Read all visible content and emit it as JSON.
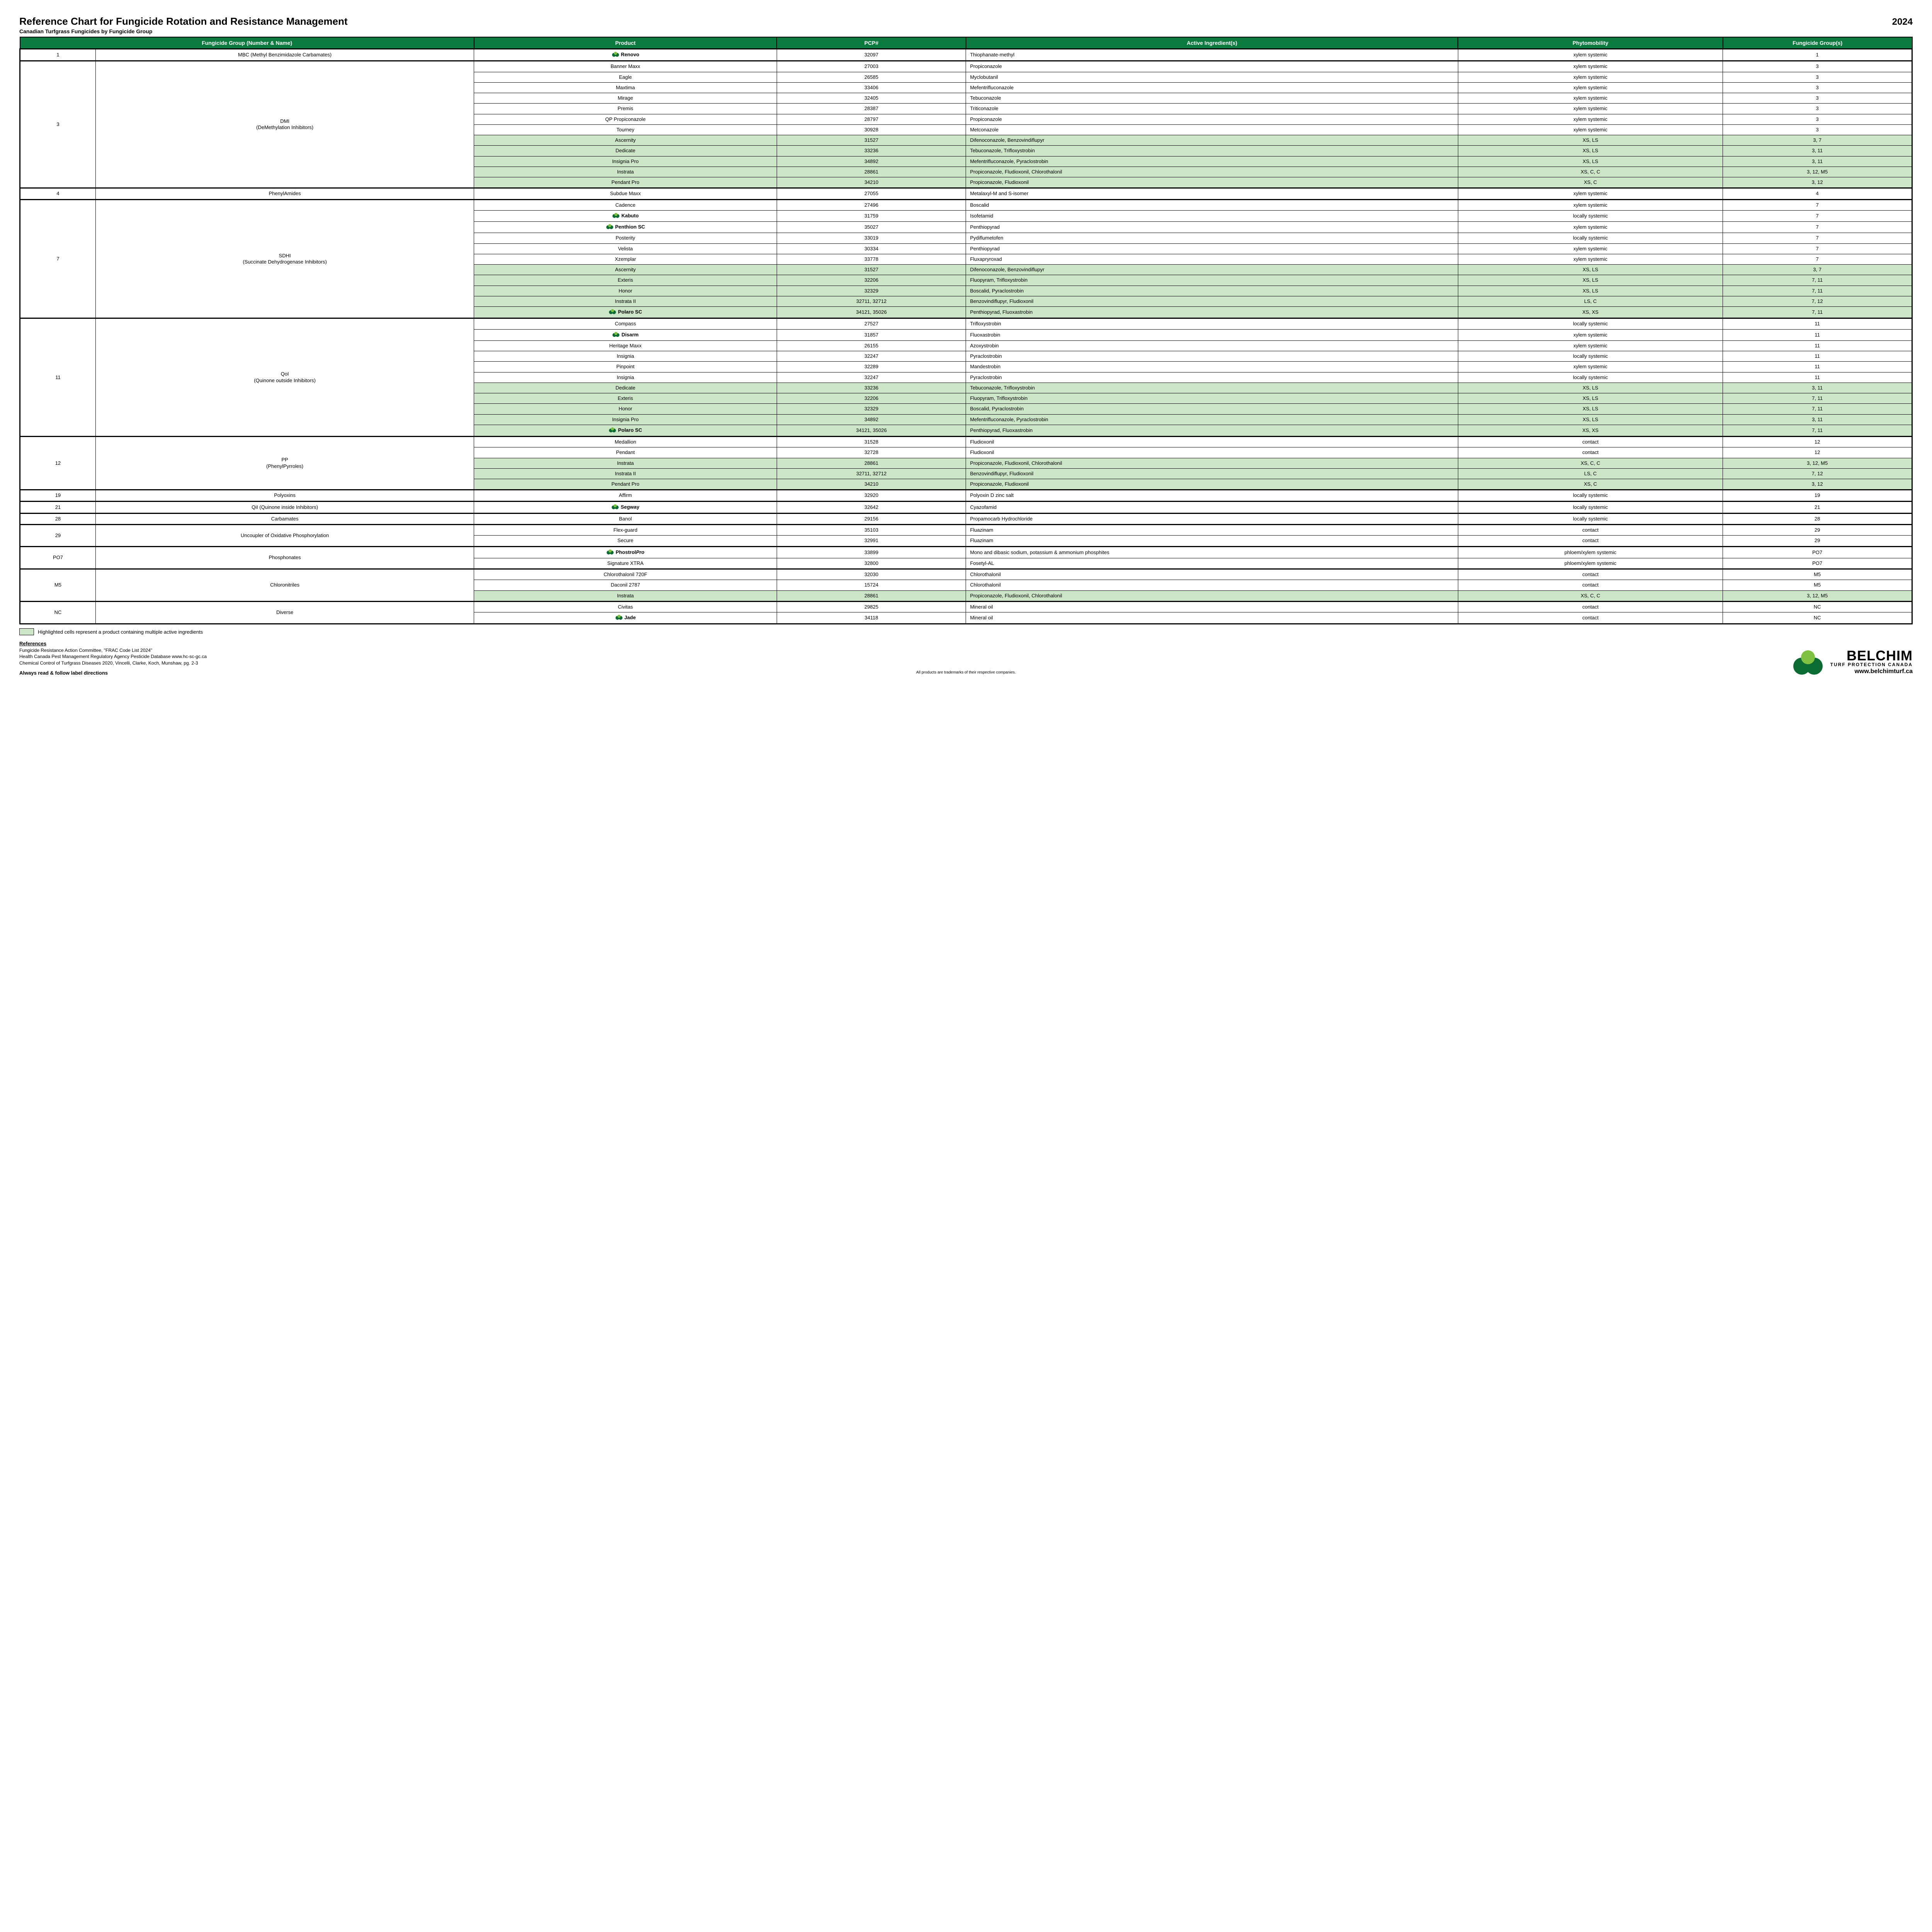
{
  "header": {
    "title": "Reference Chart for Fungicide Rotation and Resistance Management",
    "subtitle": "Canadian Turfgrass Fungicides by Fungicide Group",
    "year": "2024"
  },
  "columns": [
    "Fungicide Group (Number & Name)",
    "Product",
    "PCP#",
    "Active Ingredient(s)",
    "Phytomobility",
    "Fungicide Group(s)"
  ],
  "colors": {
    "header_bg": "#0b7a3e",
    "header_text": "#ffffff",
    "highlight_bg": "#cde6c8",
    "border": "#000000",
    "icon_dark": "#0b6b33",
    "icon_light": "#7fc243"
  },
  "groups": [
    {
      "num": "1",
      "name": "MBC  (Methyl Benzimidazole Carbamates)",
      "rows": [
        {
          "product": "Renovo",
          "logo": true,
          "bold": true,
          "pcp": "32097",
          "ai": "Thiophanate-methyl",
          "phy": "xylem systemic",
          "grp": "1"
        }
      ]
    },
    {
      "num": "3",
      "name": "DMI\n(DeMethylation Inhibitors)",
      "rows": [
        {
          "product": "Banner Maxx",
          "pcp": "27003",
          "ai": "Propiconazole",
          "phy": "xylem systemic",
          "grp": "3"
        },
        {
          "product": "Eagle",
          "pcp": "26585",
          "ai": "Myclobutanil",
          "phy": "xylem systemic",
          "grp": "3"
        },
        {
          "product": "Maxtima",
          "pcp": "33406",
          "ai": "Mefentrifluconazole",
          "phy": "xylem systemic",
          "grp": "3"
        },
        {
          "product": "Mirage",
          "pcp": "32405",
          "ai": "Tebuconazole",
          "phy": "xylem systemic",
          "grp": "3"
        },
        {
          "product": "Premis",
          "pcp": "28387",
          "ai": "Triticonazole",
          "phy": "xylem systemic",
          "grp": "3"
        },
        {
          "product": "QP Propiconazole",
          "pcp": "28797",
          "ai": "Propiconazole",
          "phy": "xylem systemic",
          "grp": "3"
        },
        {
          "product": "Tourney",
          "pcp": "30928",
          "ai": "Metconazole",
          "phy": "xylem systemic",
          "grp": "3"
        },
        {
          "product": "Ascernity",
          "pcp": "31527",
          "ai": "Difenoconazole, Benzovindiflupyr",
          "phy": "XS, LS",
          "grp": "3, 7",
          "hl": true
        },
        {
          "product": "Dedicate",
          "pcp": "33236",
          "ai": "Tebuconazole, Trifloxystrobin",
          "phy": "XS, LS",
          "grp": "3, 11",
          "hl": true
        },
        {
          "product": "Insignia Pro",
          "pcp": "34892",
          "ai": "Mefentrifluconazole, Pyraclostrobin",
          "phy": "XS, LS",
          "grp": "3, 11",
          "hl": true
        },
        {
          "product": "Instrata",
          "pcp": "28861",
          "ai": "Propiconazole, Fludioxonil, Chlorothalonil",
          "phy": "XS, C, C",
          "grp": "3, 12, M5",
          "hl": true
        },
        {
          "product": "Pendant Pro",
          "pcp": "34210",
          "ai": "Propiconazole, Fludioxonil",
          "phy": "XS, C",
          "grp": "3, 12",
          "hl": true
        }
      ]
    },
    {
      "num": "4",
      "name": "PhenylAmides",
      "rows": [
        {
          "product": "Subdue Maxx",
          "pcp": "27055",
          "ai": "Metalaxyl-M and S-isomer",
          "phy": "xylem systemic",
          "grp": "4"
        }
      ]
    },
    {
      "num": "7",
      "name": "SDHI\n(Succinate Dehydrogenase Inhibitors)",
      "rows": [
        {
          "product": "Cadence",
          "pcp": "27496",
          "ai": "Boscalid",
          "phy": "xylem systemic",
          "grp": "7"
        },
        {
          "product": "Kabuto",
          "logo": true,
          "bold": true,
          "pcp": "31759",
          "ai": "Isofetamid",
          "phy": "locally systemic",
          "grp": "7"
        },
        {
          "product": "Penthion SC",
          "logo": true,
          "bold": true,
          "pcp": "35027",
          "ai": "Penthiopyrad",
          "phy": "xylem systemic",
          "grp": "7"
        },
        {
          "product": "Posterity",
          "pcp": "33019",
          "ai": "Pydiflumetofen",
          "phy": "locally systemic",
          "grp": "7"
        },
        {
          "product": "Velista",
          "pcp": "30334",
          "ai": "Penthiopyrad",
          "phy": "xylem systemic",
          "grp": "7"
        },
        {
          "product": "Xzemplar",
          "pcp": "33778",
          "ai": "Fluxapryroxad",
          "phy": "xylem systemic",
          "grp": "7"
        },
        {
          "product": "Ascernity",
          "pcp": "31527",
          "ai": "Difenoconazole, Benzovindiflupyr",
          "phy": "XS, LS",
          "grp": "3, 7",
          "hl": true
        },
        {
          "product": "Exteris",
          "pcp": "32206",
          "ai": "Fluopyram, Trifloxystrobin",
          "phy": "XS, LS",
          "grp": "7, 11",
          "hl": true
        },
        {
          "product": "Honor",
          "pcp": "32329",
          "ai": "Boscalid, Pyraclostrobin",
          "phy": "XS, LS",
          "grp": "7, 11",
          "hl": true
        },
        {
          "product": "Instrata II",
          "pcp": "32711, 32712",
          "ai": "Benzovindiflupyr, Fludioxonil",
          "phy": "LS, C",
          "grp": "7, 12",
          "hl": true
        },
        {
          "product": "Polaro SC",
          "logo": true,
          "bold": true,
          "pcp": "34121, 35026",
          "ai": "Penthiopyrad, Fluoxastrobin",
          "phy": "XS, XS",
          "grp": "7, 11",
          "hl": true
        }
      ]
    },
    {
      "num": "11",
      "name": "QoI\n(Quinone outside Inhibitors)",
      "rows": [
        {
          "product": "Compass",
          "pcp": "27527",
          "ai": "Trifloxystrobin",
          "phy": "locally systemic",
          "grp": "11"
        },
        {
          "product": "Disarm",
          "logo": true,
          "bold": true,
          "pcp": "31857",
          "ai": "Fluoxastrobin",
          "phy": "xylem systemic",
          "grp": "11"
        },
        {
          "product": "Heritage Maxx",
          "pcp": "26155",
          "ai": "Azoxystrobin",
          "phy": "xylem systemic",
          "grp": "11"
        },
        {
          "product": "Insignia",
          "pcp": "32247",
          "ai": "Pyraclostrobin",
          "phy": "locally systemic",
          "grp": "11"
        },
        {
          "product": "Pinpoint",
          "pcp": "32289",
          "ai": "Mandestrobin",
          "phy": "xylem systemic",
          "grp": "11"
        },
        {
          "product": "Insignia",
          "pcp": "32247",
          "ai": "Pyraclostrobin",
          "phy": "locally systemic",
          "grp": "11"
        },
        {
          "product": "Dedicate",
          "pcp": "33236",
          "ai": "Tebuconazole, Trifloxystrobin",
          "phy": "XS, LS",
          "grp": "3, 11",
          "hl": true
        },
        {
          "product": "Exteris",
          "pcp": "32206",
          "ai": "Fluopyram, Trifloxystrobin",
          "phy": "XS, LS",
          "grp": "7, 11",
          "hl": true
        },
        {
          "product": "Honor",
          "pcp": "32329",
          "ai": "Boscalid, Pyraclostrobin",
          "phy": "XS, LS",
          "grp": "7, 11",
          "hl": true
        },
        {
          "product": "Insignia Pro",
          "pcp": "34892",
          "ai": "Mefentrifluconazole, Pyraclostrobin",
          "phy": "XS, LS",
          "grp": "3, 11",
          "hl": true
        },
        {
          "product": "Polaro SC",
          "logo": true,
          "bold": true,
          "pcp": "34121, 35026",
          "ai": "Penthiopyrad, Fluoxastrobin",
          "phy": "XS, XS",
          "grp": "7, 11",
          "hl": true
        }
      ]
    },
    {
      "num": "12",
      "name": "PP\n(PhenylPyrroles)",
      "rows": [
        {
          "product": "Medallion",
          "pcp": "31528",
          "ai": "Fludioxonil",
          "phy": "contact",
          "grp": "12"
        },
        {
          "product": "Pendant",
          "pcp": "32728",
          "ai": "Fludioxonil",
          "phy": "contact",
          "grp": "12"
        },
        {
          "product": "Instrata",
          "pcp": "28861",
          "ai": "Propiconazole, Fludioxonil, Chlorothalonil",
          "phy": "XS, C, C",
          "grp": "3, 12, M5",
          "hl": true
        },
        {
          "product": "Instrata II",
          "pcp": "32711, 32712",
          "ai": "Benzovindiflupyr, Fludioxonil",
          "phy": "LS, C",
          "grp": "7, 12",
          "hl": true
        },
        {
          "product": "Pendant Pro",
          "pcp": "34210",
          "ai": "Propiconazole, Fludioxonil",
          "phy": "XS, C",
          "grp": "3, 12",
          "hl": true
        }
      ]
    },
    {
      "num": "19",
      "name": "Polyoxins",
      "rows": [
        {
          "product": "Affirm",
          "pcp": "32920",
          "ai": "Polyoxin D zinc salt",
          "phy": "locally systemic",
          "grp": "19"
        }
      ]
    },
    {
      "num": "21",
      "name": "QiI (Quinone inside Inhibitors)",
      "rows": [
        {
          "product": "Segway",
          "logo": true,
          "bold": true,
          "pcp": "32642",
          "ai": "Cyazofamid",
          "phy": "locally systemic",
          "grp": "21"
        }
      ]
    },
    {
      "num": "28",
      "name": "Carbamates",
      "rows": [
        {
          "product": "Banol",
          "pcp": "29156",
          "ai": "Propamocarb Hydrochloride",
          "phy": "locally systemic",
          "grp": "28"
        }
      ]
    },
    {
      "num": "29",
      "name": "Uncoupler of Oxidative Phosphorylation",
      "rows": [
        {
          "product": "Flex-guard",
          "pcp": "35103",
          "ai": "Fluazinam",
          "phy": "contact",
          "grp": "29"
        },
        {
          "product": "Secure",
          "pcp": "32991",
          "ai": "Fluazinam",
          "phy": "contact",
          "grp": "29"
        }
      ]
    },
    {
      "num": "PO7",
      "name": "Phosphonates",
      "rows": [
        {
          "product": "PhostrolPro",
          "logo": true,
          "bold": true,
          "italicPro": true,
          "pcp": "33899",
          "ai": "Mono and dibasic sodium, potassium & ammonium phosphites",
          "phy": "phloem/xylem systemic",
          "grp": "PO7"
        },
        {
          "product": "Signature XTRA",
          "pcp": "32800",
          "ai": "Fosetyl-AL",
          "phy": "phloem/xylem systemic",
          "grp": "PO7"
        }
      ]
    },
    {
      "num": "M5",
      "name": "Chloronitriles",
      "rows": [
        {
          "product": "Chlorothalonil 720F",
          "pcp": "32030",
          "ai": "Chlorothalonil",
          "phy": "contact",
          "grp": "M5"
        },
        {
          "product": "Daconil 2787",
          "pcp": "15724",
          "ai": "Chlorothalonil",
          "phy": "contact",
          "grp": "M5"
        },
        {
          "product": "Instrata",
          "pcp": "28861",
          "ai": "Propiconazole, Fludioxonil, Chlorothalonil",
          "phy": "XS, C, C",
          "grp": "3, 12, M5",
          "hl": true
        }
      ]
    },
    {
      "num": "NC",
      "name": "Diverse",
      "rows": [
        {
          "product": "Civitas",
          "pcp": "29825",
          "ai": "Mineral oil",
          "phy": "contact",
          "grp": "NC"
        },
        {
          "product": "Jade",
          "logo": true,
          "bold": true,
          "pcp": "34118",
          "ai": "Mineral oil",
          "phy": "contact",
          "grp": "NC"
        }
      ]
    }
  ],
  "legend": "Highlighted cells represent a product containing multiple active ingredients",
  "references": {
    "title": "References",
    "lines": [
      "Fungicide Resistance Action Committee, \"FRAC Code List 2024\"",
      "Health Canada Pest Management Regulatory Agency Pesticide Database www.hc-sc-gc.ca",
      "Chemical Control of Turfgrass Diseases 2020, Vincelli, Clarke, Koch, Munshaw, pg. 2-3"
    ]
  },
  "footer": {
    "left": "Always read & follow label directions",
    "center": "All products are trademarks of their respective companies.",
    "brand_name": "BELCHIM",
    "brand_tag": "TURF PROTECTION CANADA",
    "brand_url": "www.belchimturf.ca"
  }
}
